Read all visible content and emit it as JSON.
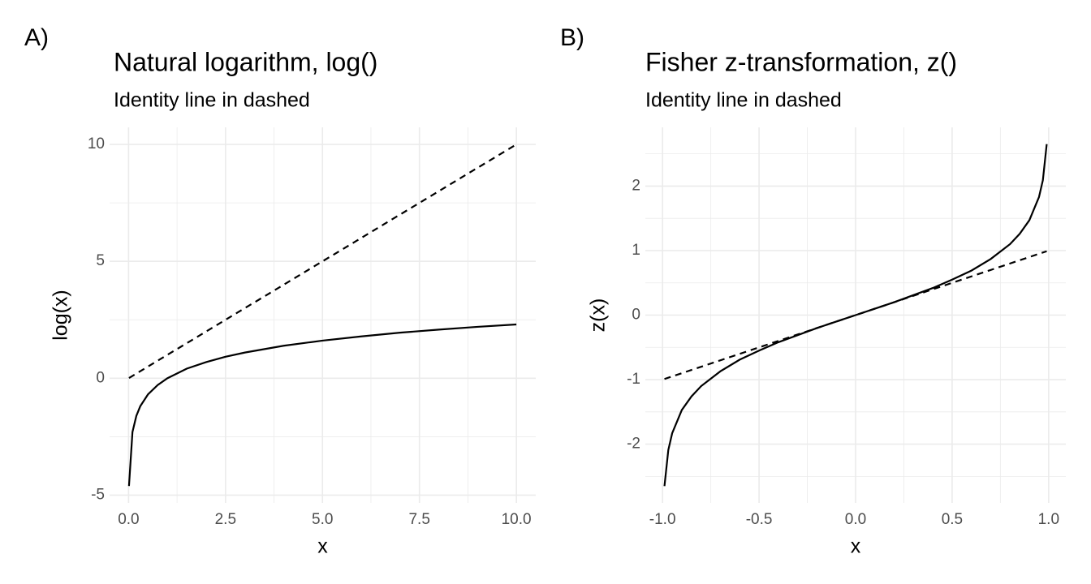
{
  "chart_data": [
    {
      "type": "line",
      "tag": "A)",
      "title": "Natural logarithm, log()",
      "subtitle": "Identity line in dashed",
      "xlabel": "x",
      "ylabel": "log(x)",
      "xlim": [
        -0.49,
        10.5
      ],
      "ylim": [
        -5.33,
        10.73
      ],
      "xticks": [
        {
          "value": 0,
          "label": "0.0"
        },
        2.5,
        {
          "value": 5,
          "label": "5.0"
        },
        7.5,
        {
          "value": 10,
          "label": "10.0"
        }
      ],
      "xminor": [
        1.25,
        3.75,
        6.25,
        8.75
      ],
      "yticks": [
        -5,
        0,
        5,
        10
      ],
      "yminor": [
        -2.5,
        2.5,
        7.5
      ],
      "grid": true,
      "series": [
        {
          "color": "#000000",
          "linestyle": "solid",
          "x": [
            0.01,
            0.1,
            0.2,
            0.3,
            0.5,
            0.75,
            1,
            1.5,
            2,
            2.5,
            3,
            4,
            5,
            6,
            7,
            8,
            9,
            10
          ],
          "values": [
            -4.61,
            -2.3,
            -1.61,
            -1.2,
            -0.69,
            -0.29,
            0,
            0.41,
            0.69,
            0.92,
            1.1,
            1.39,
            1.61,
            1.79,
            1.95,
            2.08,
            2.2,
            2.3
          ]
        },
        {
          "color": "#000000",
          "linestyle": "dashed",
          "x": [
            0.01,
            10
          ],
          "values": [
            0.01,
            10
          ]
        }
      ]
    },
    {
      "type": "line",
      "tag": "B)",
      "title": "Fisher z-transformation, z()",
      "subtitle": "Identity line in dashed",
      "xlabel": "x",
      "ylabel": "z(x)",
      "xlim": [
        -1.089,
        1.089
      ],
      "ylim": [
        -2.91,
        2.91
      ],
      "xticks": [
        {
          "value": -1,
          "label": "-1.0"
        },
        -0.5,
        {
          "value": 0,
          "label": "0.0"
        },
        0.5,
        {
          "value": 1,
          "label": "1.0"
        }
      ],
      "xminor": [
        -0.75,
        -0.25,
        0.25,
        0.75
      ],
      "yticks": [
        -2,
        -1,
        0,
        1,
        2
      ],
      "yminor": [
        -2.5,
        -1.5,
        -0.5,
        0.5,
        1.5,
        2.5
      ],
      "grid": true,
      "series": [
        {
          "color": "#000000",
          "linestyle": "solid",
          "x": [
            -0.99,
            -0.97,
            -0.95,
            -0.9,
            -0.85,
            -0.8,
            -0.7,
            -0.6,
            -0.5,
            -0.4,
            -0.3,
            -0.2,
            -0.1,
            0,
            0.1,
            0.2,
            0.3,
            0.4,
            0.5,
            0.6,
            0.7,
            0.8,
            0.85,
            0.9,
            0.95,
            0.97,
            0.99
          ],
          "values": [
            -2.65,
            -2.09,
            -1.83,
            -1.47,
            -1.26,
            -1.1,
            -0.87,
            -0.69,
            -0.55,
            -0.42,
            -0.31,
            -0.2,
            -0.1,
            0,
            0.1,
            0.2,
            0.31,
            0.42,
            0.55,
            0.69,
            0.87,
            1.1,
            1.26,
            1.47,
            1.83,
            2.09,
            2.65
          ]
        },
        {
          "color": "#000000",
          "linestyle": "dashed",
          "x": [
            -0.99,
            0.99
          ],
          "values": [
            -0.99,
            0.99
          ]
        }
      ]
    }
  ]
}
